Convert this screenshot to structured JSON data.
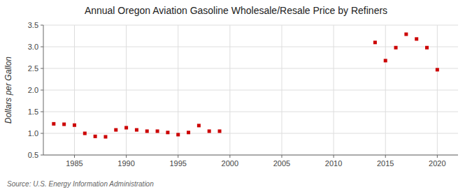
{
  "chart_data": {
    "type": "scatter",
    "title": "Annual Oregon Aviation Gasoline Wholesale/Resale Price by Refiners",
    "ylabel": "Dollars per Gallon",
    "source": "Source: U.S. Energy Information Administration",
    "x": [
      1983,
      1984,
      1985,
      1986,
      1987,
      1988,
      1989,
      1990,
      1991,
      1992,
      1993,
      1994,
      1995,
      1996,
      1997,
      1998,
      1999,
      2014,
      2015,
      2016,
      2017,
      2018,
      2019,
      2020
    ],
    "values": [
      1.22,
      1.21,
      1.19,
      1.0,
      0.93,
      0.92,
      1.08,
      1.13,
      1.08,
      1.05,
      1.05,
      1.02,
      0.97,
      1.02,
      1.18,
      1.05,
      1.05,
      3.1,
      2.68,
      2.98,
      3.29,
      3.18,
      2.98,
      2.47
    ],
    "color": "#cc0000",
    "marker": "square",
    "xlim": [
      1982,
      2022
    ],
    "ylim": [
      0.5,
      3.5
    ],
    "xticks": [
      1985,
      1990,
      1995,
      2000,
      2005,
      2010,
      2015,
      2020
    ],
    "yticks": [
      0.5,
      {
        "value": 1.0,
        "label": "1.0"
      },
      1.5,
      {
        "value": 2.0,
        "label": "2.0"
      },
      2.5,
      {
        "value": 3.0,
        "label": "3.0"
      },
      3.5
    ],
    "grid": true
  }
}
